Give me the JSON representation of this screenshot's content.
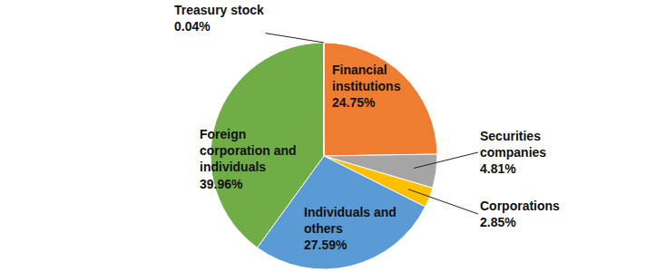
{
  "chart_data": {
    "type": "pie",
    "categories": [
      "Financial institutions",
      "Securities companies",
      "Corporations",
      "Individuals and others",
      "Foreign corporation and individuals",
      "Treasury stock"
    ],
    "values": [
      24.75,
      4.81,
      2.85,
      27.59,
      39.96,
      0.04
    ],
    "value_labels": [
      "24.75%",
      "4.81%",
      "2.85%",
      "27.59%",
      "39.96%",
      "0.04%"
    ],
    "colors": [
      "#ee7d31",
      "#a5a5a5",
      "#ffc000",
      "#5b9bd5",
      "#70ad47",
      "#4472c4"
    ],
    "data_labels": true
  }
}
